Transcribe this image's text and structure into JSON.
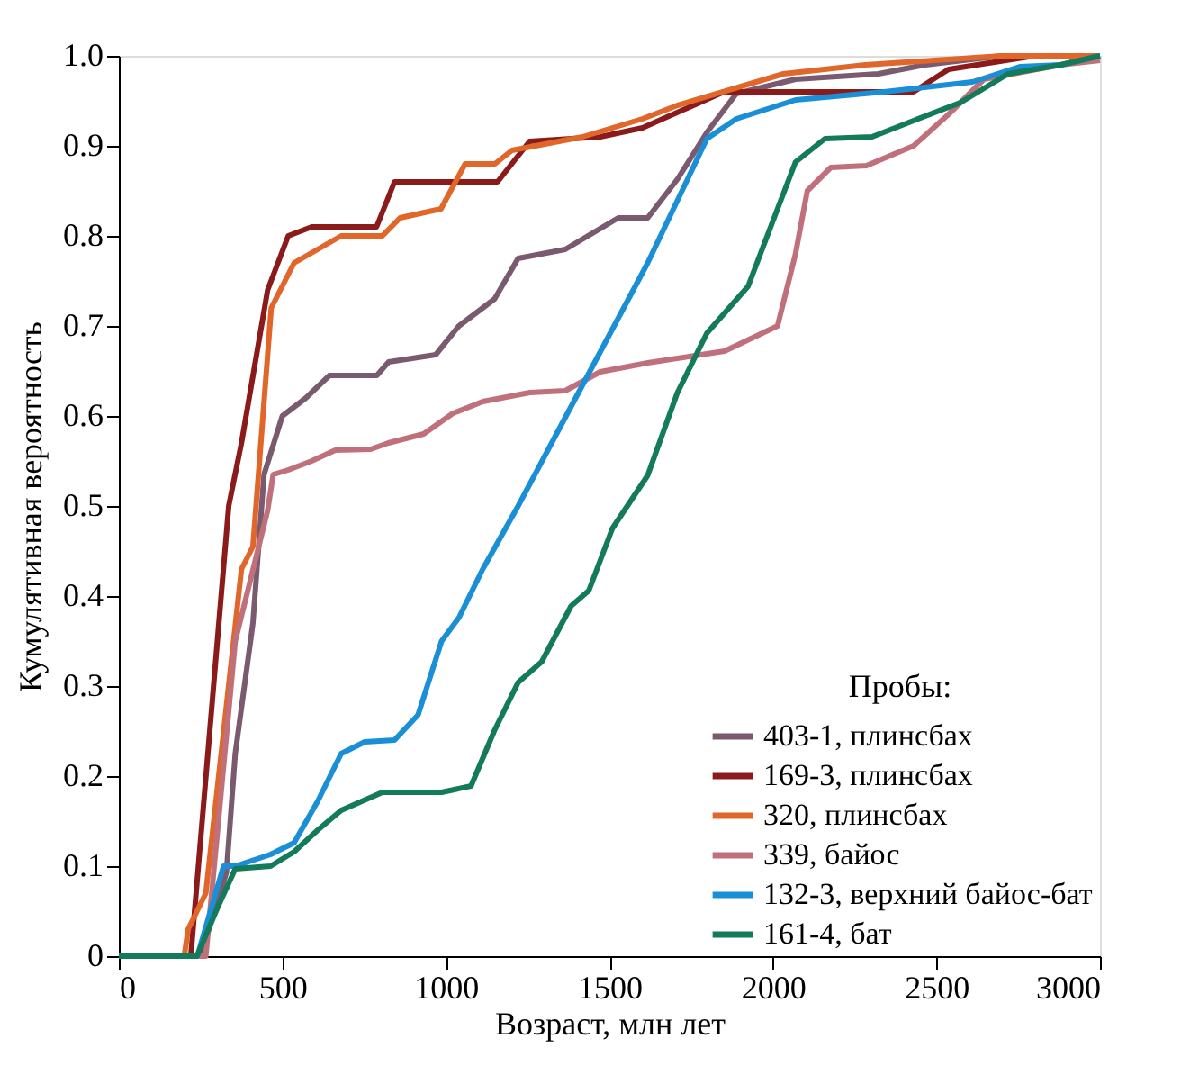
{
  "chart_data": {
    "type": "line",
    "xlabel": "Возраст, млн лет",
    "ylabel": "Кумулятивная вероятность",
    "legend_title": "Пробы:",
    "legend": "bottom right",
    "grid": false,
    "marker": "none",
    "line_style": "solid",
    "xlim": [
      0,
      3000
    ],
    "xticks": [
      0,
      500,
      1000,
      1500,
      2000,
      2500,
      3000
    ],
    "ylim": [
      0,
      1
    ],
    "yticks": [
      0,
      0.1,
      0.2,
      0.3,
      0.4,
      0.5,
      0.6,
      0.7,
      0.8,
      0.9,
      {
        "value": 1,
        "label": "1.0"
      }
    ],
    "series": [
      {
        "name": "403-1, плинсбах",
        "color": "#7a5a6e",
        "x": [
          0,
          250,
          329,
          356,
          410,
          444,
          500,
          572,
          644,
          789,
          825,
          969,
          1040,
          1149,
          1221,
          1365,
          1527,
          1617,
          1708,
          1798,
          1888,
          2069,
          2322,
          2466,
          2700,
          3000
        ],
        "values": [
          0,
          0,
          0.093,
          0.225,
          0.37,
          0.535,
          0.6,
          0.62,
          0.645,
          0.645,
          0.66,
          0.668,
          0.7,
          0.73,
          0.775,
          0.785,
          0.82,
          0.82,
          0.863,
          0.915,
          0.958,
          0.974,
          0.98,
          0.99,
          1.0,
          1.0
        ]
      },
      {
        "name": "169-3, плинсбах",
        "color": "#8b1a1a",
        "x": [
          0,
          220,
          336,
          375,
          455,
          518,
          590,
          788,
          843,
          1158,
          1256,
          1472,
          1601,
          1850,
          2430,
          2537,
          2800,
          3000
        ],
        "values": [
          0,
          0,
          0.5,
          0.57,
          0.74,
          0.8,
          0.81,
          0.81,
          0.86,
          0.86,
          0.905,
          0.91,
          0.92,
          0.96,
          0.96,
          0.985,
          1.0,
          1.0
        ]
      },
      {
        "name": "320, плинсбах",
        "color": "#e0662a",
        "x": [
          0,
          200,
          212,
          266,
          375,
          410,
          466,
          536,
          680,
          806,
          860,
          985,
          1059,
          1150,
          1202,
          1418,
          1601,
          1708,
          2032,
          2283,
          2700,
          3000
        ],
        "values": [
          0,
          0,
          0.03,
          0.07,
          0.43,
          0.455,
          0.72,
          0.77,
          0.8,
          0.8,
          0.82,
          0.83,
          0.88,
          0.88,
          0.895,
          0.91,
          0.93,
          0.945,
          0.98,
          0.99,
          1.0,
          1.0
        ]
      },
      {
        "name": "339, байос",
        "color": "#c0707a",
        "x": [
          0,
          266,
          356,
          455,
          472,
          518,
          590,
          662,
          770,
          824,
          932,
          1022,
          1113,
          1257,
          1365,
          1472,
          1617,
          1852,
          2014,
          2069,
          2105,
          2177,
          2286,
          2430,
          2537,
          2645,
          2879,
          3000
        ],
        "values": [
          0,
          0,
          0.35,
          0.495,
          0.535,
          0.54,
          0.55,
          0.562,
          0.563,
          0.57,
          0.58,
          0.603,
          0.616,
          0.626,
          0.628,
          0.649,
          0.659,
          0.672,
          0.7,
          0.78,
          0.85,
          0.876,
          0.878,
          0.9,
          0.935,
          0.974,
          0.99,
          0.995
        ]
      },
      {
        "name": "132-3, верхний байос-бат",
        "color": "#1a8fd6",
        "x": [
          0,
          240,
          320,
          356,
          464,
          536,
          608,
          680,
          752,
          843,
          915,
          987,
          1040,
          1113,
          1221,
          1347,
          1617,
          1798,
          1888,
          2069,
          2340,
          2610,
          2755,
          2880,
          3000
        ],
        "values": [
          0,
          0,
          0.1,
          0.1,
          0.113,
          0.126,
          0.172,
          0.225,
          0.238,
          0.24,
          0.268,
          0.35,
          0.376,
          0.43,
          0.5,
          0.586,
          0.77,
          0.908,
          0.93,
          0.951,
          0.96,
          0.971,
          0.988,
          0.99,
          1.0
        ]
      },
      {
        "name": "161-4, бат",
        "color": "#137a5a",
        "x": [
          0,
          239,
          302,
          356,
          464,
          536,
          608,
          680,
          806,
          987,
          1077,
          1149,
          1221,
          1293,
          1383,
          1437,
          1509,
          1617,
          1708,
          1798,
          1924,
          2014,
          2069,
          2159,
          2303,
          2430,
          2573,
          2719,
          2880,
          3000
        ],
        "values": [
          0,
          0,
          0.054,
          0.097,
          0.1,
          0.116,
          0.14,
          0.162,
          0.182,
          0.182,
          0.189,
          0.251,
          0.304,
          0.327,
          0.389,
          0.406,
          0.475,
          0.534,
          0.626,
          0.692,
          0.744,
          0.83,
          0.882,
          0.908,
          0.91,
          0.928,
          0.948,
          0.98,
          0.99,
          1.0
        ]
      }
    ]
  }
}
